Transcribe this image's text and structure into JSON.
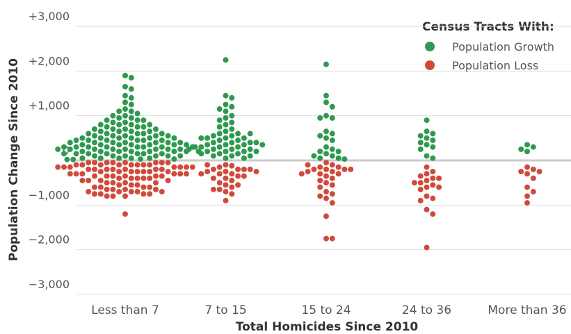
{
  "chart_data": {
    "type": "beeswarm",
    "xlabel": "Total Homicides Since 2010",
    "ylabel": "Population Change Since 2010",
    "legend_title": "Census Tracts With:",
    "legend": "top-right",
    "grid": true,
    "categories": [
      "Less than 7",
      "7 to 15",
      "15 to 24",
      "24 to 36",
      "More than 36"
    ],
    "ylim": [
      -3000,
      3000
    ],
    "yticks": [
      {
        "value": 3000,
        "label": "+3,000"
      },
      {
        "value": 2000,
        "label": "+2,000"
      },
      {
        "value": 1000,
        "label": "+1,000"
      },
      0,
      {
        "value": -1000,
        "label": "−1,000"
      },
      {
        "value": -2000,
        "label": "−2,000"
      },
      {
        "value": -3000,
        "label": "−3,000"
      }
    ],
    "series": [
      {
        "name": "Population Growth",
        "color": "#2f9a4f",
        "values": [
          [
            1900,
            1850,
            1650,
            1600,
            1450,
            1400,
            1300,
            1250,
            1150,
            1100,
            1100,
            1050,
            1000,
            1000,
            950,
            950,
            900,
            900,
            900,
            850,
            850,
            800,
            800,
            800,
            800,
            750,
            750,
            750,
            700,
            700,
            700,
            700,
            650,
            650,
            650,
            650,
            600,
            600,
            600,
            600,
            600,
            550,
            550,
            550,
            550,
            550,
            500,
            500,
            500,
            500,
            500,
            500,
            450,
            450,
            450,
            450,
            450,
            450,
            400,
            400,
            400,
            400,
            400,
            400,
            400,
            350,
            350,
            350,
            350,
            350,
            350,
            350,
            300,
            300,
            300,
            300,
            300,
            300,
            300,
            300,
            250,
            250,
            250,
            250,
            250,
            250,
            250,
            250,
            200,
            200,
            200,
            200,
            200,
            200,
            200,
            200,
            150,
            150,
            150,
            150,
            150,
            150,
            150,
            100,
            100,
            100,
            100,
            100,
            100,
            50,
            50,
            50,
            50,
            50,
            30,
            30,
            20,
            20
          ],
          [
            2250,
            1450,
            1400,
            1250,
            1200,
            1150,
            1100,
            1000,
            950,
            900,
            850,
            800,
            750,
            700,
            650,
            600,
            600,
            550,
            550,
            500,
            500,
            500,
            450,
            450,
            400,
            400,
            400,
            350,
            350,
            350,
            300,
            300,
            300,
            250,
            250,
            250,
            200,
            200,
            200,
            150,
            150,
            150,
            100,
            100,
            50,
            50,
            600,
            500,
            400,
            300,
            200,
            100,
            350,
            250
          ],
          [
            2150,
            1450,
            1300,
            1200,
            1000,
            950,
            950,
            650,
            600,
            550,
            500,
            450,
            300,
            250,
            200,
            200,
            150,
            100,
            100,
            50,
            50,
            30
          ],
          [
            900,
            650,
            600,
            550,
            500,
            450,
            400,
            350,
            300,
            250,
            100,
            50
          ],
          [
            350,
            300,
            250,
            200
          ]
        ]
      },
      {
        "name": "Population Loss",
        "color": "#d04a3c",
        "values": [
          [
            -50,
            -50,
            -50,
            -50,
            -50,
            -50,
            -50,
            -50,
            -100,
            -100,
            -100,
            -100,
            -100,
            -100,
            -100,
            -100,
            -150,
            -150,
            -150,
            -150,
            -150,
            -150,
            -150,
            -200,
            -200,
            -200,
            -200,
            -200,
            -200,
            -200,
            -250,
            -250,
            -250,
            -250,
            -250,
            -250,
            -250,
            -300,
            -300,
            -300,
            -300,
            -300,
            -300,
            -350,
            -350,
            -350,
            -350,
            -350,
            -350,
            -400,
            -400,
            -400,
            -400,
            -400,
            -450,
            -450,
            -450,
            -450,
            -500,
            -500,
            -500,
            -500,
            -550,
            -550,
            -550,
            -600,
            -600,
            -600,
            -600,
            -650,
            -650,
            -650,
            -650,
            -700,
            -700,
            -700,
            -700,
            -700,
            -750,
            -750,
            -750,
            -750,
            -800,
            -800,
            -800,
            -1200
          ],
          [
            -100,
            -120,
            -150,
            -200,
            -200,
            -200,
            -250,
            -250,
            -300,
            -300,
            -350,
            -400,
            -450,
            -500,
            -550,
            -600,
            -650,
            -700,
            -750,
            -900,
            -200,
            -300,
            -400,
            -550,
            -650,
            -100,
            -250,
            -350
          ],
          [
            -50,
            -100,
            -150,
            -150,
            -200,
            -200,
            -200,
            -250,
            -250,
            -300,
            -300,
            -350,
            -400,
            -450,
            -500,
            -550,
            -600,
            -700,
            -750,
            -800,
            -850,
            -950,
            -1250,
            -1750,
            -1750,
            -100,
            -200,
            -300
          ],
          [
            -150,
            -250,
            -300,
            -350,
            -400,
            -450,
            -500,
            -550,
            -600,
            -650,
            -800,
            -850,
            -900,
            -1100,
            -1200,
            -1950,
            -400,
            -500,
            -600
          ],
          [
            -150,
            -200,
            -250,
            -250,
            -300,
            -400,
            -600,
            -700,
            -800,
            -950
          ]
        ]
      }
    ]
  }
}
